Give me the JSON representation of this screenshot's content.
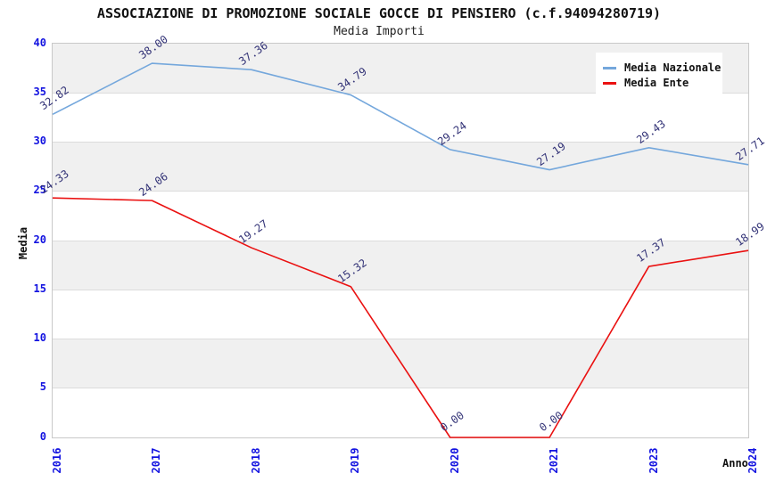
{
  "chart_data": {
    "type": "line",
    "title": "ASSOCIAZIONE DI PROMOZIONE SOCIALE GOCCE DI PENSIERO (c.f.94094280719)",
    "subtitle": "Media Importi",
    "xlabel": "Anno",
    "ylabel": "Media",
    "categories": [
      "2016",
      "2017",
      "2018",
      "2019",
      "2020",
      "2021",
      "2023",
      "2024"
    ],
    "yticks": [
      0,
      5,
      10,
      15,
      20,
      25,
      30,
      35,
      40
    ],
    "ylim": [
      0,
      40
    ],
    "grid": true,
    "legend_position": "top-right",
    "series": [
      {
        "name": "Media Nazionale",
        "color": "#74a7dc",
        "values": [
          32.82,
          38.0,
          37.36,
          34.79,
          29.24,
          27.19,
          29.43,
          27.71
        ],
        "labels": [
          "32.82",
          "38.00",
          "37.36",
          "34.79",
          "29.24",
          "27.19",
          "29.43",
          "27.71"
        ]
      },
      {
        "name": "Media Ente",
        "color": "#ea1111",
        "values": [
          24.33,
          24.06,
          19.27,
          15.32,
          0.0,
          0.0,
          17.37,
          18.99
        ],
        "labels": [
          "24.33",
          "24.06",
          "19.27",
          "15.32",
          "0.00",
          "0.00",
          "17.37",
          "18.99"
        ]
      }
    ],
    "colors": {
      "tick_label": "#1212e0",
      "value_label": "#333377",
      "band_gray": "#f0f0f0",
      "band_white": "#ffffff",
      "plot_border": "#c9c9c9"
    }
  }
}
